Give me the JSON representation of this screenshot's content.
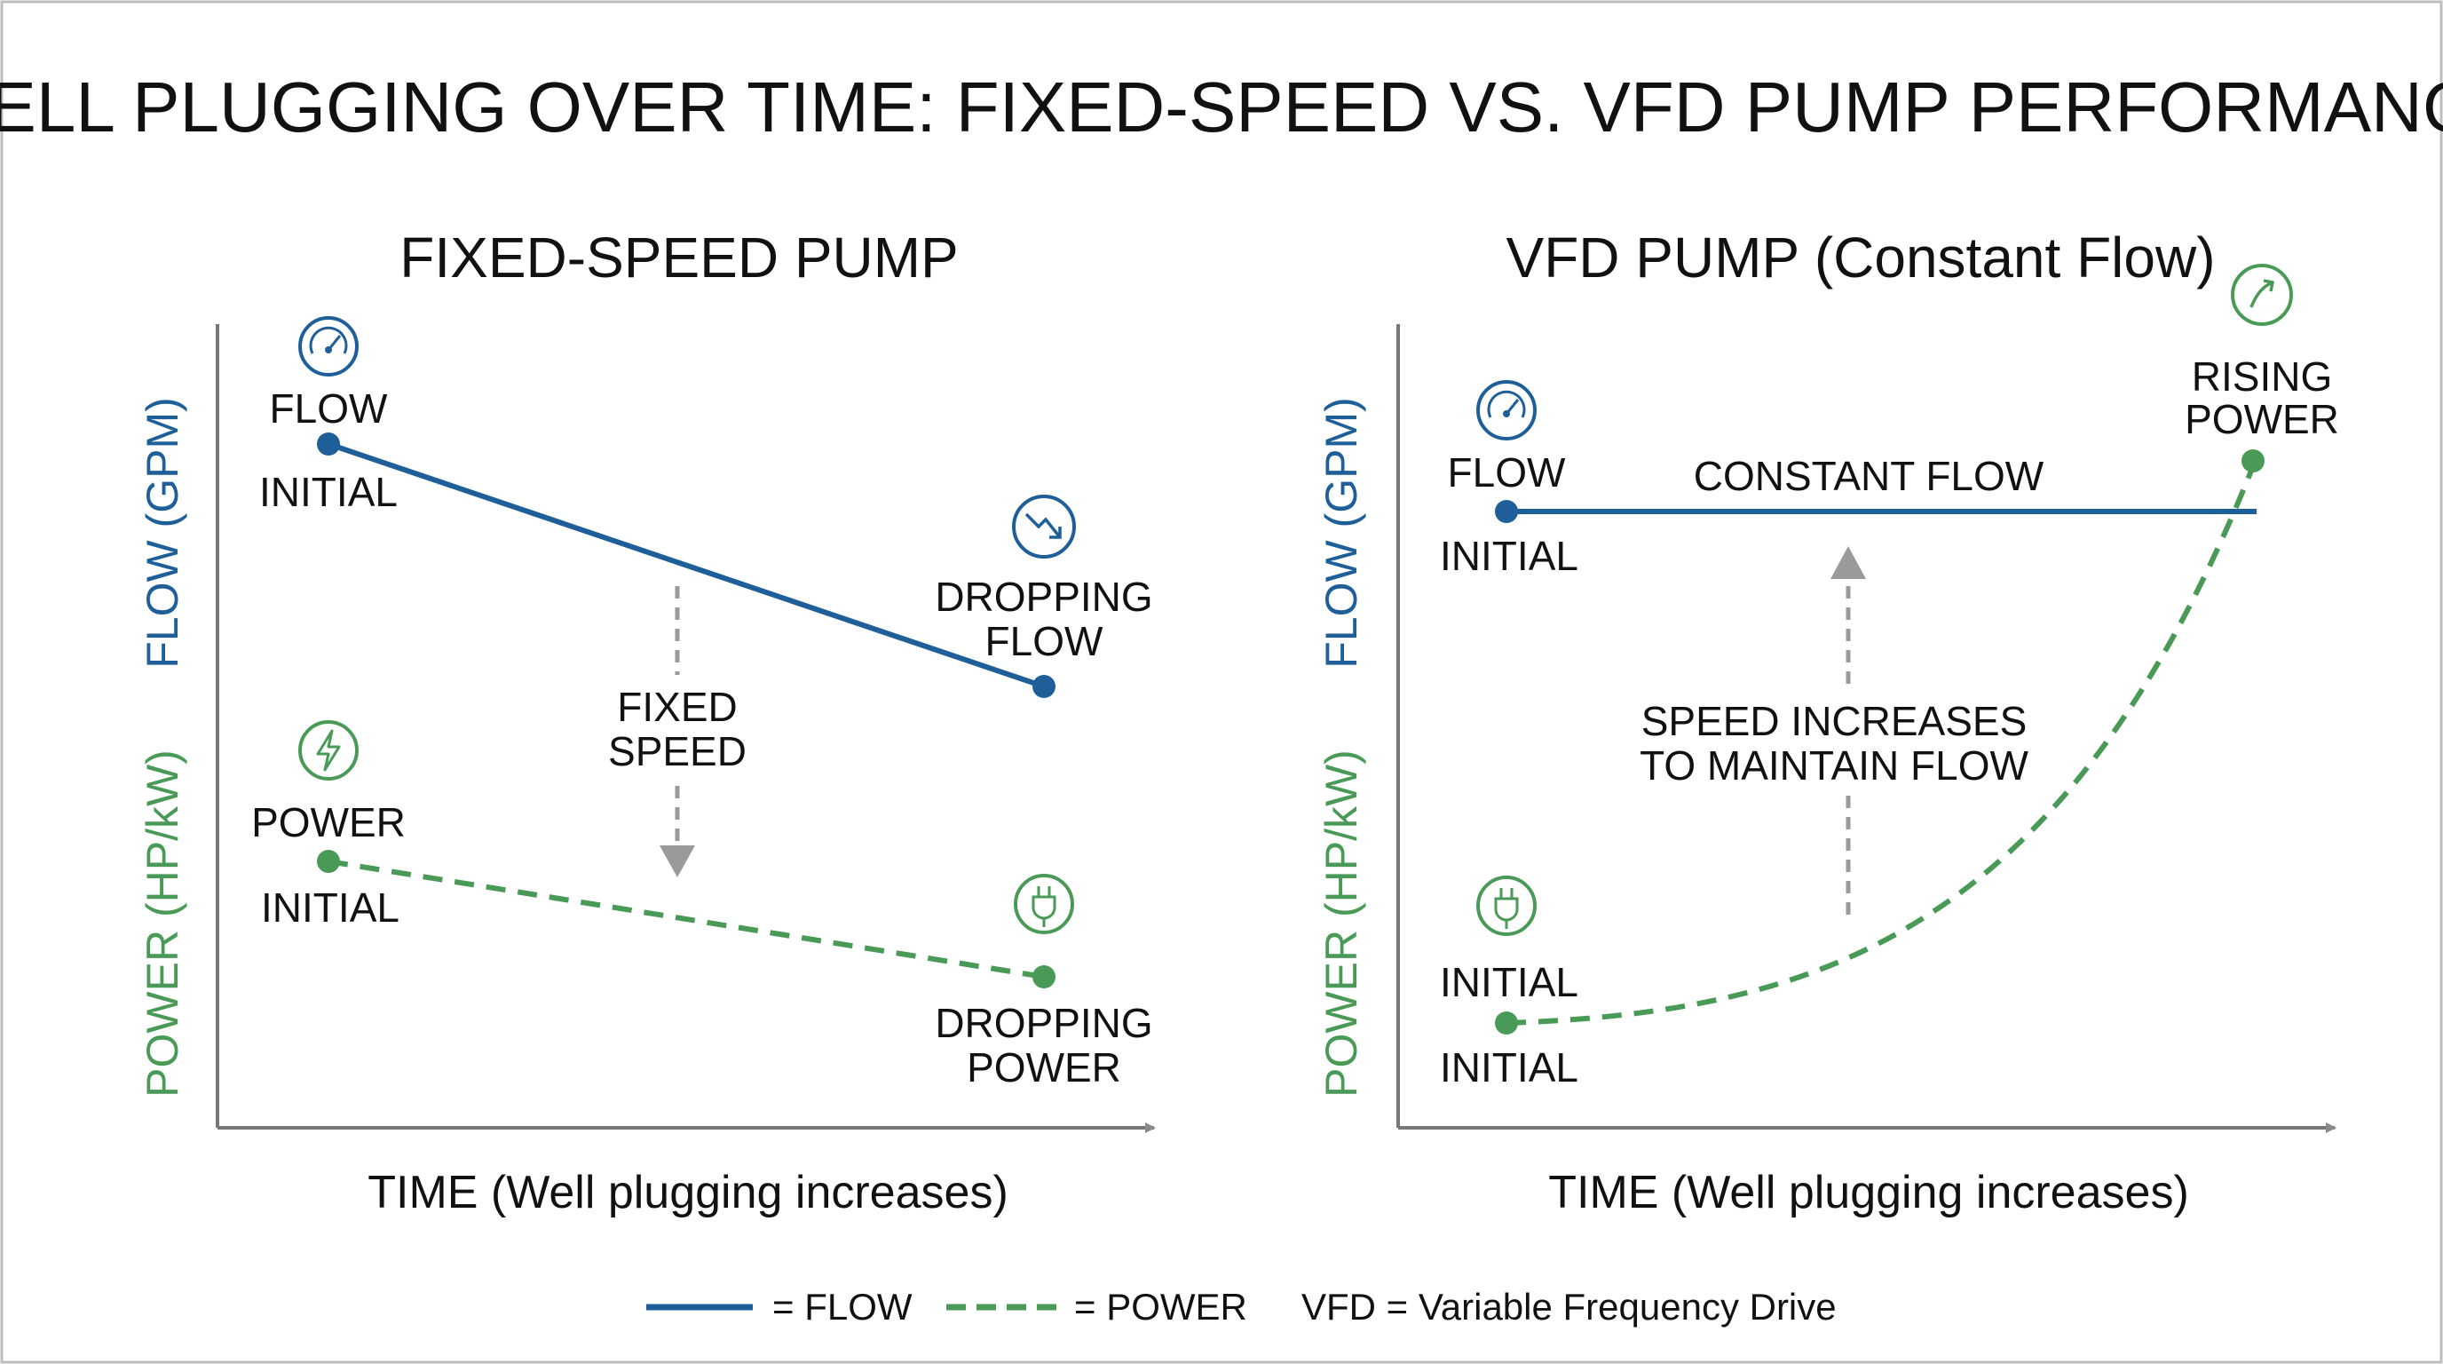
{
  "title": "WELL PLUGGING OVER TIME: FIXED-SPEED VS. VFD PUMP PERFORMANCE",
  "colors": {
    "flow": "#1f5f99",
    "power": "#4a9a57",
    "arrow": "#9a9a9a",
    "text": "#111111"
  },
  "left": {
    "title": "FIXED-SPEED PUMP",
    "y_flow_label": "FLOW (GPM)",
    "y_power_label": "POWER (HP/kW)",
    "x_label": "TIME (Well plugging increases)",
    "flow_start_label": "FLOW",
    "flow_start_sub": "INITIAL",
    "flow_end_label": [
      "DROPPING",
      "FLOW"
    ],
    "power_start_label": "POWER",
    "power_start_sub": "INITIAL",
    "power_end_label": [
      "DROPPING",
      "POWER"
    ],
    "arrow_label": [
      "FIXED",
      "SPEED"
    ],
    "icons": [
      "gauge-icon",
      "trending-down-icon",
      "lightning-icon",
      "plug-icon"
    ]
  },
  "right": {
    "title": "VFD PUMP (Constant Flow)",
    "y_flow_label": "FLOW (GPM)",
    "y_power_label": "POWER (HP/kW)",
    "x_label": "TIME (Well plugging increases)",
    "flow_start_label": "FLOW",
    "flow_start_sub": "INITIAL",
    "flow_line_label": "CONSTANT FLOW",
    "power_start_label": "INITIAL",
    "power_start_sub": "INITIAL",
    "power_end_label": [
      "RISING",
      "POWER"
    ],
    "arrow_label": [
      "SPEED INCREASES",
      "TO MAINTAIN FLOW"
    ],
    "icons": [
      "gauge-icon",
      "trending-up-icon",
      "plug-icon"
    ]
  },
  "legend": {
    "flow": "= FLOW",
    "power": "= POWER",
    "note": "VFD = Variable Frequency Drive"
  }
}
